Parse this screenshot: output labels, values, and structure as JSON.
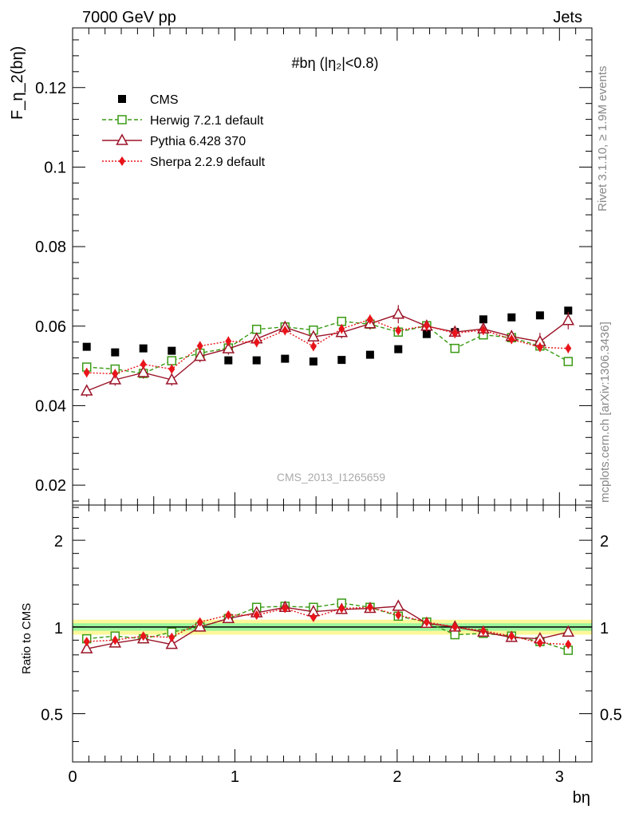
{
  "header": {
    "left": "7000 GeV pp",
    "right": "Jets"
  },
  "side_labels": {
    "rivet": "Rivet 3.1.10, ≥ 1.9M events",
    "mcplots": "mcplots.cern.ch [arXiv:1306.3436]"
  },
  "watermark": "CMS_2013_I1265659",
  "chart_data": [
    {
      "type": "scatter",
      "title": "#bη (|η₂|<0.8)",
      "ylabel": "F_η_2(bη)",
      "xlabel": "bη",
      "xlim": [
        0,
        3.2
      ],
      "ylim": [
        0.015,
        0.135
      ],
      "yticks": [
        0.02,
        0.04,
        0.06,
        0.08,
        0.1,
        0.12
      ],
      "ytick_labels": [
        "0.02",
        "0.04",
        "0.06",
        "0.08",
        "0.1",
        "0.12"
      ],
      "legend_position": "top-left",
      "x": [
        0.087,
        0.262,
        0.436,
        0.611,
        0.785,
        0.96,
        1.134,
        1.309,
        1.484,
        1.658,
        1.833,
        2.007,
        2.182,
        2.356,
        2.531,
        2.705,
        2.88,
        3.054
      ],
      "series": [
        {
          "name": "CMS",
          "color": "#000000",
          "marker": "square-filled",
          "line": "none",
          "values": [
            0.0548,
            0.0534,
            0.0544,
            0.0538,
            0.0524,
            0.0514,
            0.0514,
            0.0518,
            0.0511,
            0.0515,
            0.0528,
            0.0542,
            0.058,
            0.0585,
            0.0617,
            0.0622,
            0.0627,
            0.0639
          ],
          "errors": [
            0.0008,
            0.0008,
            0.0008,
            0.0008,
            0.0008,
            0.0008,
            0.0008,
            0.0008,
            0.0008,
            0.0008,
            0.0008,
            0.0008,
            0.0008,
            0.0008,
            0.0008,
            0.0008,
            0.0008,
            0.0008
          ]
        },
        {
          "name": "Herwig 7.2.1 default",
          "color": "#3a9a14",
          "marker": "square-open",
          "line": "dashed",
          "values": [
            0.0497,
            0.0492,
            0.0481,
            0.0513,
            0.0532,
            0.0545,
            0.0592,
            0.0598,
            0.059,
            0.0612,
            0.0605,
            0.0585,
            0.0601,
            0.0544,
            0.0578,
            0.0571,
            0.055,
            0.0511
          ],
          "errors": [
            0.001,
            0.001,
            0.001,
            0.001,
            0.001,
            0.001,
            0.001,
            0.001,
            0.001,
            0.001,
            0.001,
            0.001,
            0.001,
            0.001,
            0.001,
            0.001,
            0.001,
            0.001
          ]
        },
        {
          "name": "Pythia 6.428 370",
          "color": "#9b1428",
          "marker": "triangle-open",
          "line": "solid",
          "values": [
            0.0437,
            0.0465,
            0.0483,
            0.0465,
            0.0524,
            0.0543,
            0.0568,
            0.0597,
            0.0573,
            0.0584,
            0.0606,
            0.063,
            0.06,
            0.0585,
            0.0593,
            0.0574,
            0.0561,
            0.0614
          ],
          "errors": [
            0.0015,
            0.0015,
            0.0015,
            0.0015,
            0.0015,
            0.0015,
            0.0015,
            0.0015,
            0.0015,
            0.0015,
            0.0015,
            0.0023,
            0.0015,
            0.0015,
            0.0015,
            0.0015,
            0.0022,
            0.0022
          ]
        },
        {
          "name": "Sherpa 2.2.9 default",
          "color": "#e8141a",
          "marker": "diamond-filled",
          "line": "dotted",
          "values": [
            0.0483,
            0.048,
            0.0504,
            0.0492,
            0.055,
            0.0562,
            0.0559,
            0.0589,
            0.0549,
            0.0593,
            0.0617,
            0.0589,
            0.0601,
            0.0582,
            0.059,
            0.0567,
            0.0547,
            0.0544
          ],
          "errors": [
            0.0012,
            0.0012,
            0.0012,
            0.0012,
            0.0012,
            0.0012,
            0.0012,
            0.0012,
            0.0012,
            0.0012,
            0.0012,
            0.0012,
            0.0012,
            0.0012,
            0.0012,
            0.0012,
            0.0012,
            0.0012
          ]
        }
      ]
    },
    {
      "type": "scatter",
      "title": "",
      "ylabel": "Ratio to CMS",
      "xlabel": "bη",
      "xlim": [
        0,
        3.2
      ],
      "ylim": [
        0.34,
        2.65
      ],
      "yscale": "log",
      "yticks": [
        0.5,
        1,
        2
      ],
      "ytick_labels": [
        "0.5",
        "1",
        "2"
      ],
      "xticks": [
        0,
        1,
        2,
        3
      ],
      "xtick_labels": [
        "0",
        "1",
        "2",
        "3"
      ],
      "reference_line": 1,
      "bands": [
        {
          "color": "#fdf79a",
          "relative_halfwidth": 0.06
        },
        {
          "color": "#9cf59c",
          "relative_halfwidth": 0.03
        }
      ],
      "x": [
        0.087,
        0.262,
        0.436,
        0.611,
        0.785,
        0.96,
        1.134,
        1.309,
        1.484,
        1.658,
        1.833,
        2.007,
        2.182,
        2.356,
        2.531,
        2.705,
        2.88,
        3.054
      ],
      "series": [
        {
          "name": "Herwig 7.2.1 default",
          "color": "#3a9a14",
          "marker": "square-open",
          "line": "dashed",
          "values": [
            0.91,
            0.93,
            0.91,
            0.96,
            1.0,
            1.07,
            1.17,
            1.18,
            1.17,
            1.21,
            1.17,
            1.09,
            1.04,
            0.94,
            0.95,
            0.93,
            0.89,
            0.83
          ]
        },
        {
          "name": "Pythia 6.428 370",
          "color": "#9b1428",
          "marker": "triangle-open",
          "line": "solid",
          "values": [
            0.84,
            0.88,
            0.91,
            0.87,
            1.0,
            1.07,
            1.12,
            1.17,
            1.13,
            1.15,
            1.16,
            1.18,
            1.03,
            1.0,
            0.96,
            0.92,
            0.91,
            0.96
          ]
        },
        {
          "name": "Sherpa 2.2.9 default",
          "color": "#e8141a",
          "marker": "diamond-filled",
          "line": "dotted",
          "values": [
            0.89,
            0.9,
            0.93,
            0.92,
            1.04,
            1.1,
            1.1,
            1.16,
            1.08,
            1.16,
            1.17,
            1.1,
            1.04,
            1.0,
            0.97,
            0.93,
            0.88,
            0.87
          ]
        }
      ]
    }
  ]
}
